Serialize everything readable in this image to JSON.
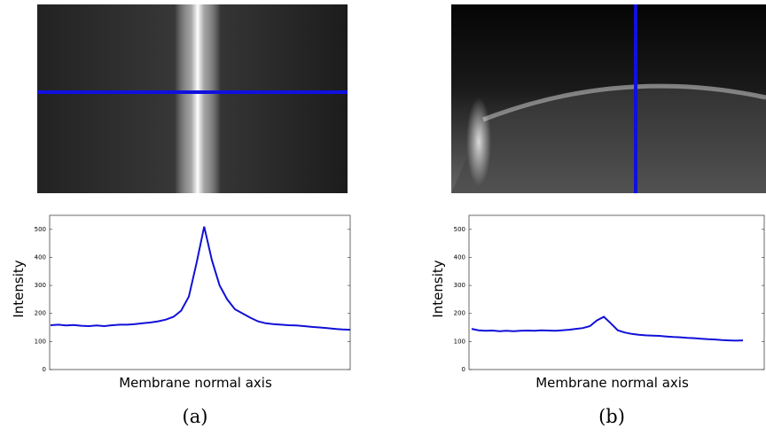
{
  "chart_data": [
    {
      "type": "line",
      "caption": "(a)",
      "ylabel": "Intensity",
      "xlabel": "Membrane normal axis",
      "ylim": [
        0,
        550
      ],
      "yticks": [
        0,
        100,
        200,
        300,
        400,
        500
      ],
      "color": "#1010d8",
      "values": [
        158,
        160,
        157,
        159,
        156,
        155,
        157,
        155,
        158,
        160,
        160,
        162,
        165,
        168,
        172,
        178,
        188,
        210,
        260,
        380,
        510,
        390,
        300,
        250,
        215,
        200,
        185,
        172,
        165,
        162,
        160,
        158,
        157,
        155,
        152,
        150,
        148,
        145,
        143,
        142
      ]
    },
    {
      "type": "line",
      "caption": "(b)",
      "ylabel": "Intensity",
      "xlabel": "Membrane normal axis",
      "ylim": [
        0,
        550
      ],
      "yticks": [
        0,
        100,
        200,
        300,
        400,
        500
      ],
      "color": "#1010d8",
      "values": [
        145,
        140,
        138,
        139,
        137,
        138,
        137,
        138,
        139,
        138,
        140,
        139,
        138,
        140,
        142,
        145,
        148,
        155,
        175,
        188,
        165,
        140,
        132,
        127,
        124,
        122,
        121,
        120,
        118,
        116,
        115,
        113,
        112,
        110,
        108,
        107,
        105,
        104,
        103,
        104
      ]
    }
  ]
}
